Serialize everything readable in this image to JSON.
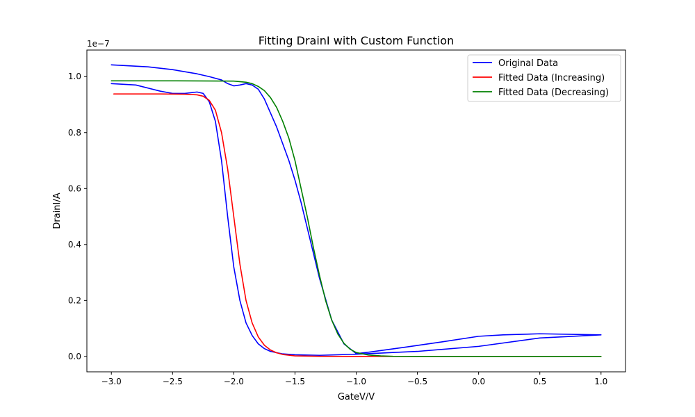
{
  "chart_data": {
    "type": "line",
    "title": "Fitting DrainI with Custom Function",
    "xlabel": "GateV/V",
    "ylabel": "DrainI/A",
    "y_offset_text": "1e−7",
    "y_scale": 1e-07,
    "xlim": [
      -3.2,
      1.2
    ],
    "ylim": [
      -0.055,
      1.095
    ],
    "x_ticks": [
      -3.0,
      -2.5,
      -2.0,
      -1.5,
      -1.0,
      -0.5,
      0.0,
      0.5,
      1.0
    ],
    "x_tick_labels": [
      "−3.0",
      "−2.5",
      "−2.0",
      "−1.5",
      "−1.0",
      "−0.5",
      "0.0",
      "0.5",
      "1.0"
    ],
    "y_ticks": [
      0.0,
      0.2,
      0.4,
      0.6,
      0.8,
      1.0
    ],
    "y_tick_labels": [
      "0.0",
      "0.2",
      "0.4",
      "0.6",
      "0.8",
      "1.0"
    ],
    "grid": false,
    "legend_position": "upper right",
    "series": [
      {
        "name": "Original Data",
        "color": "#0000ff",
        "x": [
          -3.0,
          -2.8,
          -2.6,
          -2.5,
          -2.4,
          -2.3,
          -2.25,
          -2.2,
          -2.15,
          -2.1,
          -2.05,
          -2.0,
          -1.95,
          -1.9,
          -1.85,
          -1.8,
          -1.75,
          -1.7,
          -1.6,
          -1.5,
          -1.3,
          -1.0,
          -0.5,
          0.0,
          0.5,
          1.0,
          1.0,
          0.5,
          0.2,
          0.0,
          -0.3,
          -0.6,
          -0.9,
          -1.0,
          -1.1,
          -1.2,
          -1.3,
          -1.35,
          -1.4,
          -1.45,
          -1.5,
          -1.55,
          -1.6,
          -1.65,
          -1.7,
          -1.75,
          -1.8,
          -1.85,
          -1.9,
          -1.95,
          -2.0,
          -2.05,
          -2.1,
          -2.2,
          -2.3,
          -2.5,
          -2.7,
          -3.0
        ],
        "y": [
          0.975,
          0.97,
          0.948,
          0.94,
          0.94,
          0.945,
          0.94,
          0.91,
          0.84,
          0.7,
          0.5,
          0.32,
          0.2,
          0.12,
          0.075,
          0.045,
          0.028,
          0.018,
          0.009,
          0.006,
          0.004,
          0.008,
          0.018,
          0.036,
          0.066,
          0.077,
          0.077,
          0.081,
          0.077,
          0.072,
          0.052,
          0.033,
          0.015,
          0.01,
          0.045,
          0.13,
          0.28,
          0.37,
          0.46,
          0.55,
          0.63,
          0.7,
          0.76,
          0.82,
          0.87,
          0.92,
          0.955,
          0.97,
          0.975,
          0.97,
          0.967,
          0.975,
          0.988,
          1.0,
          1.01,
          1.025,
          1.035,
          1.042
        ]
      },
      {
        "name": "Fitted Data (Increasing)",
        "color": "#ff0000",
        "x": [
          -2.98,
          -2.6,
          -2.4,
          -2.3,
          -2.25,
          -2.2,
          -2.15,
          -2.1,
          -2.05,
          -2.0,
          -1.95,
          -1.9,
          -1.85,
          -1.8,
          -1.75,
          -1.7,
          -1.65,
          -1.6,
          -1.5,
          -1.3,
          -1.0,
          -0.5,
          0.0,
          0.5,
          1.0
        ],
        "y": [
          0.938,
          0.938,
          0.937,
          0.935,
          0.93,
          0.915,
          0.88,
          0.8,
          0.67,
          0.5,
          0.33,
          0.2,
          0.12,
          0.07,
          0.04,
          0.023,
          0.013,
          0.007,
          0.002,
          0.0005,
          0.0,
          0.0,
          0.0,
          0.0,
          0.0
        ]
      },
      {
        "name": "Fitted Data (Decreasing)",
        "color": "#008000",
        "x": [
          -3.0,
          -2.5,
          -2.0,
          -1.9,
          -1.85,
          -1.8,
          -1.75,
          -1.7,
          -1.65,
          -1.6,
          -1.55,
          -1.5,
          -1.45,
          -1.4,
          -1.35,
          -1.3,
          -1.25,
          -1.2,
          -1.15,
          -1.1,
          -1.05,
          -1.0,
          -0.9,
          -0.8,
          -0.7,
          -0.5,
          0.0,
          0.5,
          1.0
        ],
        "y": [
          0.985,
          0.985,
          0.984,
          0.98,
          0.975,
          0.965,
          0.95,
          0.925,
          0.89,
          0.84,
          0.78,
          0.7,
          0.6,
          0.5,
          0.39,
          0.29,
          0.2,
          0.13,
          0.08,
          0.047,
          0.026,
          0.014,
          0.005,
          0.002,
          0.0005,
          0.0,
          0.0,
          0.0,
          0.0
        ]
      }
    ]
  }
}
